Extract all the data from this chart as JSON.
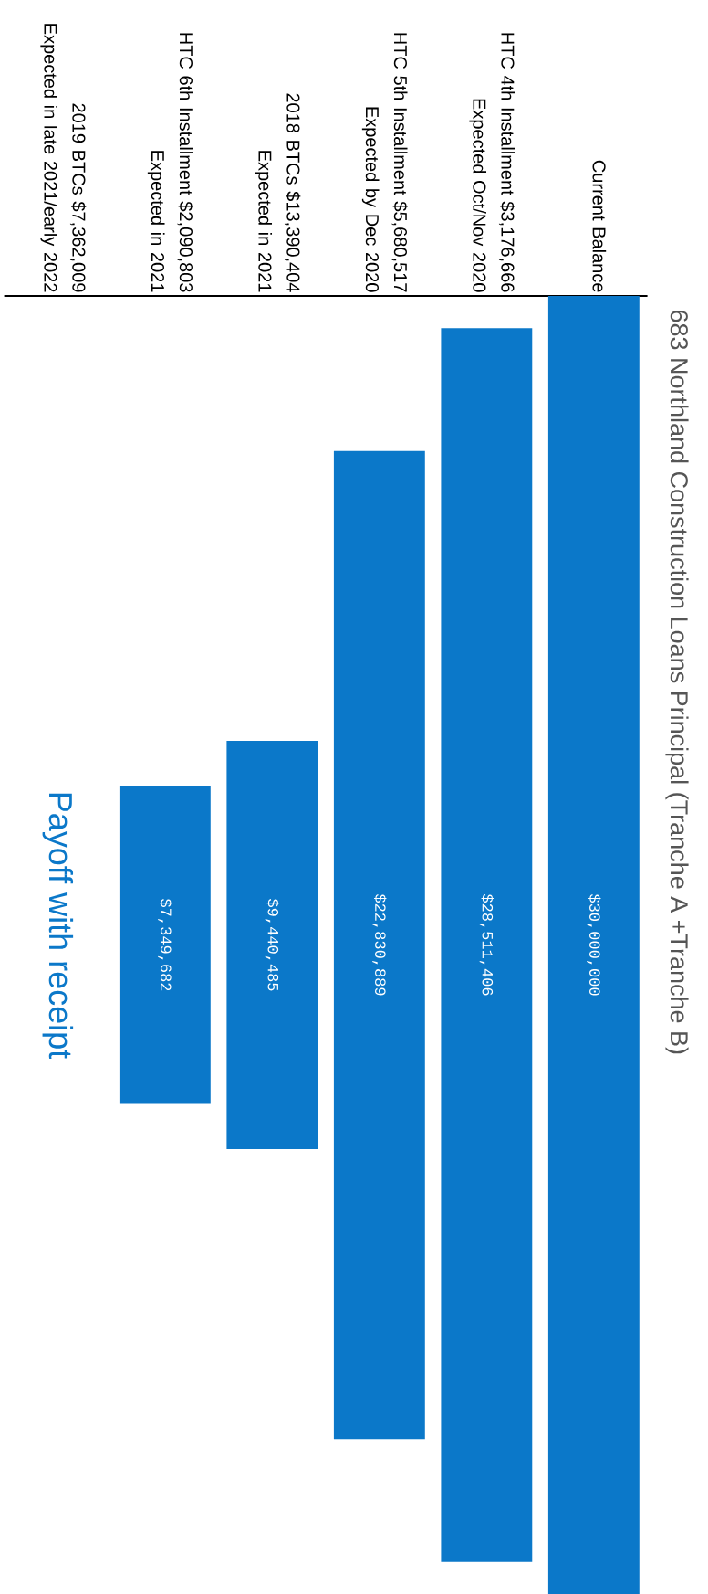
{
  "chart_data": {
    "type": "other",
    "title": "683 Northland Construction Loans Principal (Tranche A +Tranche B)",
    "categories": [
      "Current Balance",
      "HTC 4th Installment $3,176,666\nExpected Oct/Nov 2020",
      "HTC 5th Installment $5,680,517\nExpected by Dec 2020",
      "2018 BTCs $13,390,404\nExpected in 2021",
      "HTC 6th Installment $2,090,803\nExpected in 2021",
      "2019 BTCs $7,362,009\nExpected in late 2021/early 2022"
    ],
    "values": [
      30000000,
      28511406,
      22830889,
      9440485,
      7349682,
      null
    ],
    "value_labels": [
      "$30,000,000",
      "$28,511,406",
      "$22,830,889",
      "$9,440,485",
      "$7,349,682",
      null
    ],
    "color": "#0b78c9",
    "annotations": [
      "Payoff with receipt"
    ]
  }
}
